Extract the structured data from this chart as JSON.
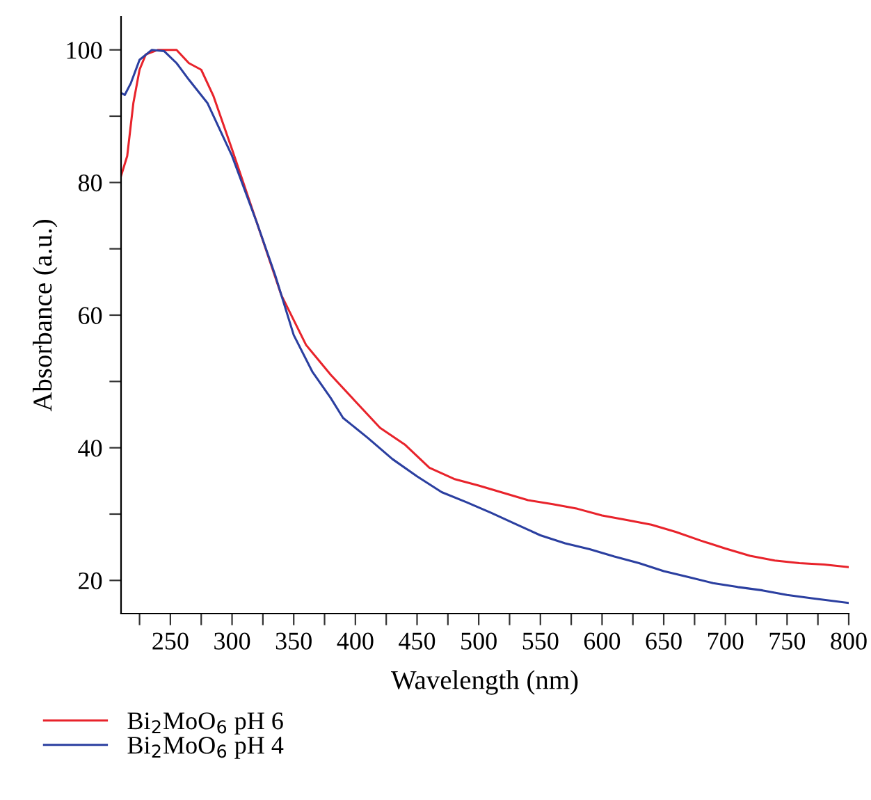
{
  "chart_data": {
    "type": "line",
    "xlabel": "Wavelength (nm)",
    "ylabel": "Absorbance (a.u.)",
    "xlim": [
      210,
      800
    ],
    "ylim": [
      15,
      105
    ],
    "xticks": [
      {
        "value": 225,
        "label": null
      },
      250,
      {
        "value": 275,
        "label": null
      },
      300,
      {
        "value": 325,
        "label": null
      },
      350,
      {
        "value": 375,
        "label": null
      },
      400,
      {
        "value": 425,
        "label": null
      },
      450,
      {
        "value": 475,
        "label": null
      },
      500,
      {
        "value": 525,
        "label": null
      },
      550,
      {
        "value": 575,
        "label": null
      },
      600,
      {
        "value": 625,
        "label": null
      },
      650,
      {
        "value": 675,
        "label": null
      },
      700,
      {
        "value": 725,
        "label": null
      },
      750,
      {
        "value": 775,
        "label": null
      },
      800
    ],
    "yticks": [
      20,
      {
        "value": 30,
        "label": null
      },
      40,
      {
        "value": 50,
        "label": null
      },
      60,
      {
        "value": 70,
        "label": null
      },
      80,
      {
        "value": 90,
        "label": null
      },
      100
    ],
    "grid": false,
    "legend": "bottom left",
    "marker": "none",
    "line_style": "solid",
    "series": [
      {
        "name": "Bi$_{2}$MoO$_{6}$ pH 6",
        "color": "#e8232b",
        "x": [
          210,
          215,
          220,
          225,
          230,
          240,
          255,
          265,
          275,
          285,
          300,
          320,
          340,
          360,
          380,
          400,
          420,
          440,
          460,
          480,
          500,
          520,
          540,
          560,
          580,
          600,
          620,
          640,
          660,
          680,
          700,
          720,
          740,
          760,
          780,
          800
        ],
        "values": [
          81,
          84,
          92,
          97,
          99.3,
          100,
          100,
          98,
          97,
          93,
          85,
          74,
          63,
          55.5,
          51,
          47,
          43,
          40.5,
          37,
          35.3,
          34.3,
          33.2,
          32.1,
          31.5,
          30.8,
          29.8,
          29.1,
          28.4,
          27.3,
          26,
          24.8,
          23.7,
          23,
          22.6,
          22.4,
          22
        ]
      },
      {
        "name": "Bi$_{2}$MoO$_{6}$ pH 4",
        "color": "#2b3fa0",
        "x": [
          210,
          213,
          218,
          225,
          235,
          245,
          255,
          265,
          280,
          300,
          320,
          335,
          350,
          365,
          380,
          390,
          410,
          430,
          450,
          470,
          490,
          510,
          530,
          550,
          570,
          590,
          610,
          630,
          650,
          670,
          690,
          710,
          730,
          750,
          770,
          800
        ],
        "values": [
          93.5,
          93.2,
          95,
          98.5,
          100,
          99.8,
          98,
          95.5,
          92,
          84,
          74,
          66,
          57,
          51.5,
          47.5,
          44.5,
          41.5,
          38.3,
          35.7,
          33.3,
          31.8,
          30.2,
          28.5,
          26.8,
          25.6,
          24.7,
          23.6,
          22.6,
          21.4,
          20.5,
          19.6,
          19,
          18.5,
          17.8,
          17.3,
          16.6
        ]
      }
    ]
  }
}
